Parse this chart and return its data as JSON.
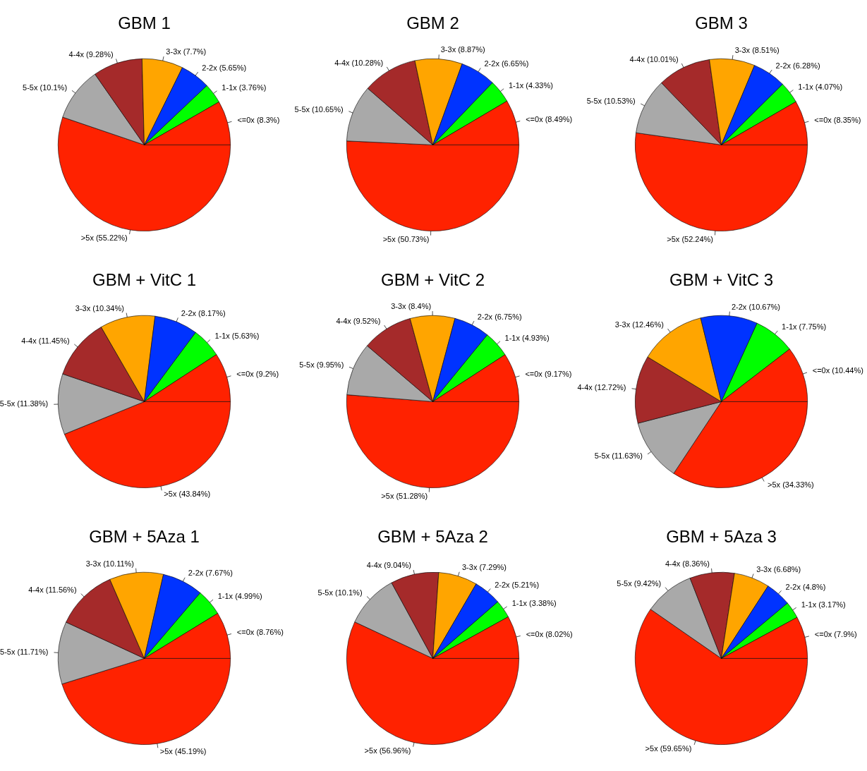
{
  "chart_data": [
    {
      "type": "pie",
      "title": "GBM 1",
      "categories": [
        "<=0x",
        "1-1x",
        "2-2x",
        "3-3x",
        "4-4x",
        "5-5x",
        ">5x"
      ],
      "values": [
        8.3,
        3.76,
        5.65,
        7.7,
        9.28,
        10.1,
        55.22
      ],
      "value_labels": [
        "(8.3%)",
        "(3.76%)",
        "(5.65%)",
        "(7.7%)",
        "(9.28%)",
        "(10.1%)",
        "(55.22%)"
      ],
      "colors": [
        "#ff2200",
        "#00ff00",
        "#0033ff",
        "#ffa500",
        "#a52a2a",
        "#a9a9a9",
        "#ff2200"
      ],
      "legend": false
    },
    {
      "type": "pie",
      "title": "GBM 2",
      "categories": [
        "<=0x",
        "1-1x",
        "2-2x",
        "3-3x",
        "4-4x",
        "5-5x",
        ">5x"
      ],
      "values": [
        8.49,
        4.33,
        6.65,
        8.87,
        10.28,
        10.65,
        50.73
      ],
      "value_labels": [
        "(8.49%)",
        "(4.33%)",
        "(6.65%)",
        "(8.87%)",
        "(10.28%)",
        "(10.65%)",
        "(50.73%)"
      ],
      "colors": [
        "#ff2200",
        "#00ff00",
        "#0033ff",
        "#ffa500",
        "#a52a2a",
        "#a9a9a9",
        "#ff2200"
      ],
      "legend": false
    },
    {
      "type": "pie",
      "title": "GBM 3",
      "categories": [
        "<=0x",
        "1-1x",
        "2-2x",
        "3-3x",
        "4-4x",
        "5-5x",
        ">5x"
      ],
      "values": [
        8.35,
        4.07,
        6.28,
        8.51,
        10.01,
        10.53,
        52.24
      ],
      "value_labels": [
        "(8.35%)",
        "(4.07%)",
        "(6.28%)",
        "(8.51%)",
        "(10.01%)",
        "(10.53%)",
        "(52.24%)"
      ],
      "colors": [
        "#ff2200",
        "#00ff00",
        "#0033ff",
        "#ffa500",
        "#a52a2a",
        "#a9a9a9",
        "#ff2200"
      ],
      "legend": false
    },
    {
      "type": "pie",
      "title": "GBM + VitC 1",
      "categories": [
        "<=0x",
        "1-1x",
        "2-2x",
        "3-3x",
        "4-4x",
        "5-5x",
        ">5x"
      ],
      "values": [
        9.2,
        5.63,
        8.17,
        10.34,
        11.45,
        11.38,
        43.84
      ],
      "value_labels": [
        "(9.2%)",
        "(5.63%)",
        "(8.17%)",
        "(10.34%)",
        "(11.45%)",
        "(11.38%)",
        "(43.84%)"
      ],
      "colors": [
        "#ff2200",
        "#00ff00",
        "#0033ff",
        "#ffa500",
        "#a52a2a",
        "#a9a9a9",
        "#ff2200"
      ],
      "legend": false
    },
    {
      "type": "pie",
      "title": "GBM + VitC 2",
      "categories": [
        "<=0x",
        "1-1x",
        "2-2x",
        "3-3x",
        "4-4x",
        "5-5x",
        ">5x"
      ],
      "values": [
        9.17,
        4.93,
        6.75,
        8.4,
        9.52,
        9.95,
        51.28
      ],
      "value_labels": [
        "(9.17%)",
        "(4.93%)",
        "(6.75%)",
        "(8.4%)",
        "(9.52%)",
        "(9.95%)",
        "(51.28%)"
      ],
      "colors": [
        "#ff2200",
        "#00ff00",
        "#0033ff",
        "#ffa500",
        "#a52a2a",
        "#a9a9a9",
        "#ff2200"
      ],
      "legend": false
    },
    {
      "type": "pie",
      "title": "GBM + VitC 3",
      "categories": [
        "<=0x",
        "1-1x",
        "2-2x",
        "3-3x",
        "4-4x",
        "5-5x",
        ">5x"
      ],
      "values": [
        10.44,
        7.75,
        10.67,
        12.46,
        12.72,
        11.63,
        34.33
      ],
      "value_labels": [
        "(10.44%)",
        "(7.75%)",
        "(10.67%)",
        "(12.46%)",
        "(12.72%)",
        "(11.63%)",
        "(34.33%)"
      ],
      "colors": [
        "#ff2200",
        "#00ff00",
        "#0033ff",
        "#ffa500",
        "#a52a2a",
        "#a9a9a9",
        "#ff2200"
      ],
      "legend": false
    },
    {
      "type": "pie",
      "title": "GBM + 5Aza 1",
      "categories": [
        "<=0x",
        "1-1x",
        "2-2x",
        "3-3x",
        "4-4x",
        "5-5x",
        ">5x"
      ],
      "values": [
        8.76,
        4.99,
        7.67,
        10.11,
        11.56,
        11.71,
        45.19
      ],
      "value_labels": [
        "(8.76%)",
        "(4.99%)",
        "(7.67%)",
        "(10.11%)",
        "(11.56%)",
        "(11.71%)",
        "(45.19%)"
      ],
      "colors": [
        "#ff2200",
        "#00ff00",
        "#0033ff",
        "#ffa500",
        "#a52a2a",
        "#a9a9a9",
        "#ff2200"
      ],
      "legend": false
    },
    {
      "type": "pie",
      "title": "GBM + 5Aza 2",
      "categories": [
        "<=0x",
        "1-1x",
        "2-2x",
        "3-3x",
        "4-4x",
        "5-5x",
        ">5x"
      ],
      "values": [
        8.02,
        3.38,
        5.21,
        7.29,
        9.04,
        10.1,
        56.96
      ],
      "value_labels": [
        "(8.02%)",
        "(3.38%)",
        "(5.21%)",
        "(7.29%)",
        "(9.04%)",
        "(10.1%)",
        "(56.96%)"
      ],
      "colors": [
        "#ff2200",
        "#00ff00",
        "#0033ff",
        "#ffa500",
        "#a52a2a",
        "#a9a9a9",
        "#ff2200"
      ],
      "legend": false
    },
    {
      "type": "pie",
      "title": "GBM + 5Aza 3",
      "categories": [
        "<=0x",
        "1-1x",
        "2-2x",
        "3-3x",
        "4-4x",
        "5-5x",
        ">5x"
      ],
      "values": [
        7.9,
        3.17,
        4.8,
        6.68,
        8.36,
        9.42,
        59.65
      ],
      "value_labels": [
        "(7.9%)",
        "(3.17%)",
        "(4.8%)",
        "(6.68%)",
        "(8.36%)",
        "(9.42%)",
        "(59.65%)"
      ],
      "colors": [
        "#ff2200",
        "#00ff00",
        "#0033ff",
        "#ffa500",
        "#a52a2a",
        "#a9a9a9",
        "#ff2200"
      ],
      "legend": false
    }
  ]
}
